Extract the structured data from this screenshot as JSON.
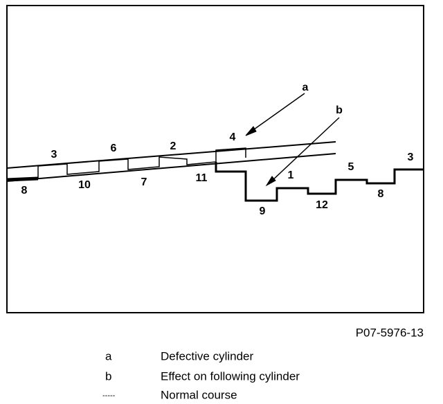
{
  "diagram": {
    "cylinder_labels": [
      "3",
      "6",
      "2",
      "4",
      "8",
      "10",
      "7",
      "11",
      "1",
      "5",
      "3",
      "9",
      "12",
      "8"
    ],
    "callouts": [
      "a",
      "b"
    ],
    "figure_code": "P07-5976-13"
  },
  "legend": [
    {
      "key": "a",
      "text": "Defective cylinder"
    },
    {
      "key": "b",
      "text": "Effect on following cylinder"
    },
    {
      "key": "-----",
      "text": "Normal course"
    }
  ]
}
